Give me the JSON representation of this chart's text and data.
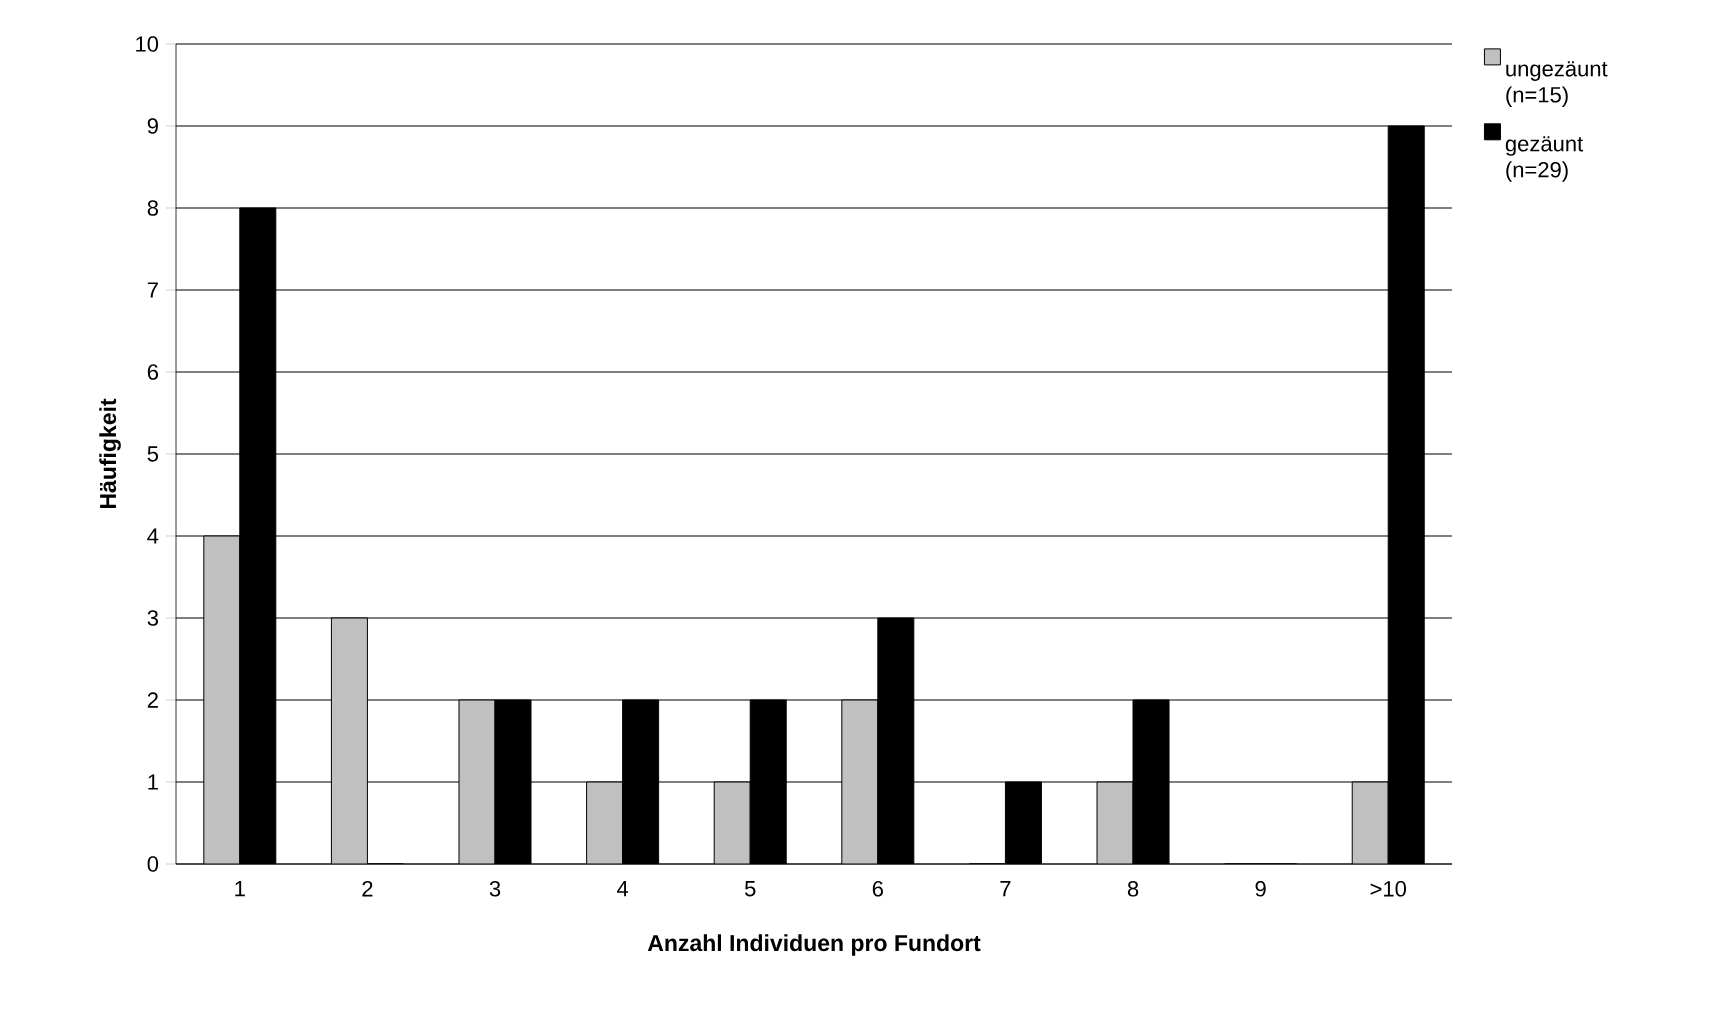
{
  "chart_data": {
    "type": "bar",
    "xlabel": "Anzahl Individuen pro Fundort",
    "ylabel": "Häufigkeit",
    "categories": [
      "1",
      "2",
      "3",
      "4",
      "5",
      "6",
      "7",
      "8",
      "9",
      ">10"
    ],
    "series": [
      {
        "name": "ungezäunt (n=15)",
        "color": "#c0c0c0",
        "values": [
          4,
          3,
          2,
          1,
          1,
          2,
          0,
          1,
          0,
          1
        ]
      },
      {
        "name": "gezäunt (n=29)",
        "color": "#000000",
        "values": [
          8,
          0,
          2,
          2,
          2,
          3,
          1,
          2,
          0,
          9
        ]
      }
    ],
    "ylim": [
      0,
      10
    ],
    "yticks": [
      0,
      1,
      2,
      3,
      4,
      5,
      6,
      7,
      8,
      9,
      10
    ],
    "grid": "y",
    "legend": "top right"
  }
}
